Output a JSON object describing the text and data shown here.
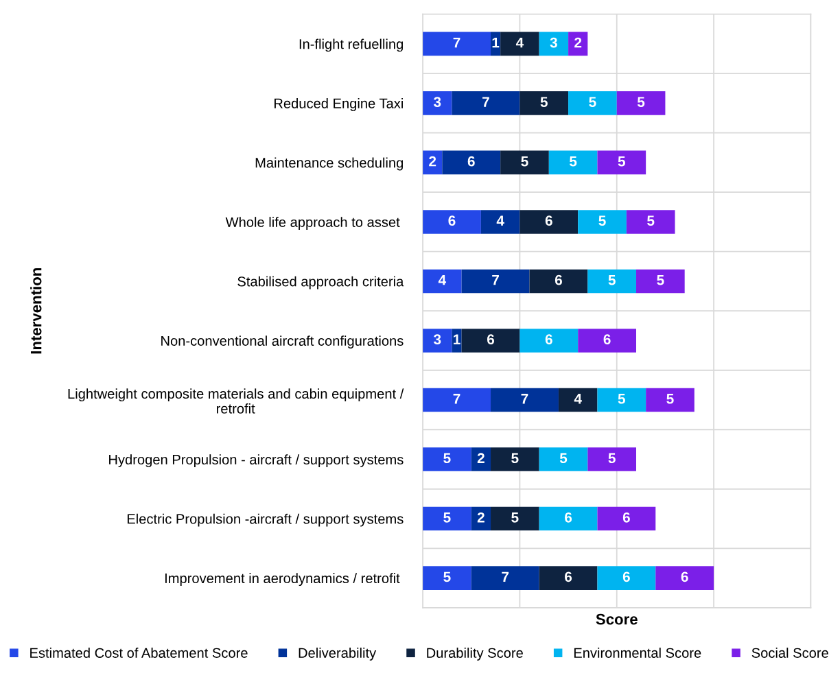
{
  "chart_data": {
    "type": "bar",
    "orientation": "horizontal",
    "stacked": true,
    "data_labels": true,
    "xlabel": "Score",
    "ylabel": "Intervention",
    "grid": true,
    "legend": "bottom",
    "tick_labels": "y",
    "categories": [
      "In-flight refuelling",
      "Reduced Engine Taxi",
      "Maintenance scheduling",
      "Whole life approach to asset ",
      "Stabilised approach criteria",
      "Non-conventional aircraft configurations",
      "Lightweight composite materials and cabin equipment /\nretrofit",
      "Hydrogen Propulsion - aircraft / support systems",
      "Electric Propulsion -aircraft / support systems",
      "Improvement in aerodynamics / retrofit "
    ],
    "xlim": [
      0,
      40
    ],
    "xticks": [
      {
        "value": 0,
        "label": null
      },
      {
        "value": 10,
        "label": null
      },
      {
        "value": 20,
        "label": null
      },
      {
        "value": 30,
        "label": null
      },
      {
        "value": 40,
        "label": null
      }
    ],
    "series": [
      {
        "name": "Estimated Cost of Abatement Score",
        "color": "#2448e8",
        "values": [
          7,
          3,
          2,
          6,
          4,
          3,
          7,
          5,
          5,
          5
        ]
      },
      {
        "name": "Deliverability",
        "color": "#003399",
        "values": [
          1,
          7,
          6,
          4,
          7,
          1,
          7,
          2,
          2,
          7
        ]
      },
      {
        "name": "Durability Score",
        "color": "#0e2340",
        "values": [
          4,
          5,
          5,
          6,
          6,
          6,
          4,
          5,
          5,
          6
        ]
      },
      {
        "name": "Environmental Score",
        "color": "#00b4f0",
        "values": [
          3,
          5,
          5,
          5,
          5,
          6,
          5,
          5,
          6,
          6
        ]
      },
      {
        "name": "Social Score",
        "color": "#7b1fe8",
        "values": [
          2,
          5,
          5,
          5,
          5,
          6,
          5,
          5,
          6,
          6
        ]
      }
    ]
  }
}
